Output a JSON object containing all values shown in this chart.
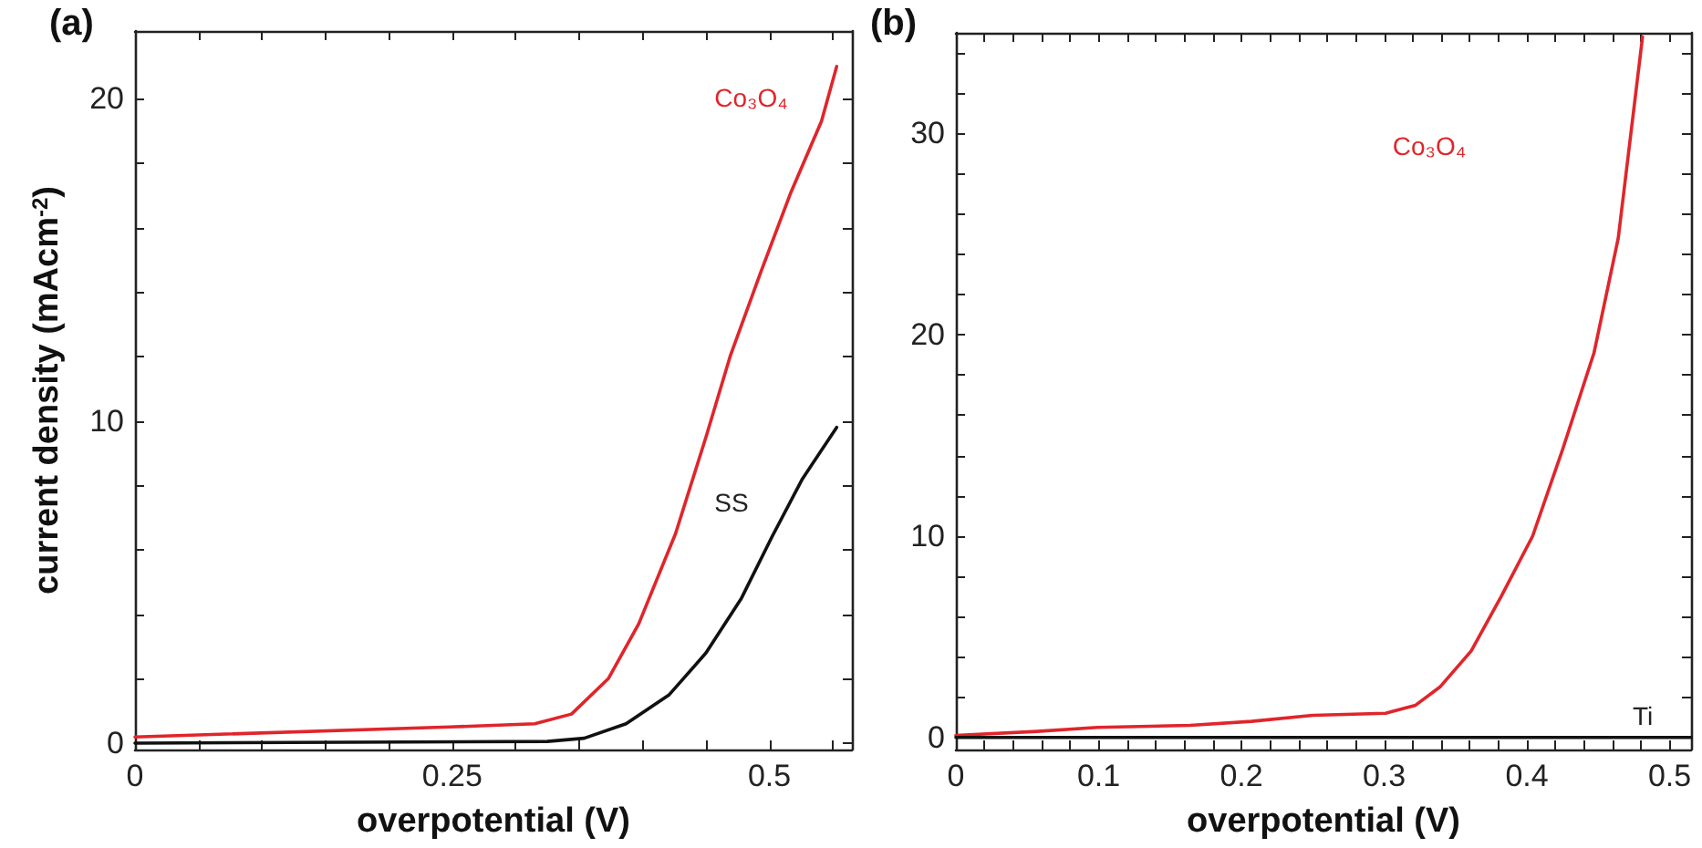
{
  "chart_data": [
    {
      "type": "line",
      "title": "(a)",
      "xlabel": "overpotential (V)",
      "ylabel": "current density (mAcm$^{-2}$)",
      "xlim": [
        0,
        0.565
      ],
      "ylim": [
        -0.2,
        22.1
      ],
      "xticks": [
        0,
        {
          "value": 0.05,
          "label": null
        },
        {
          "value": 0.1,
          "label": null
        },
        {
          "value": 0.15,
          "label": null
        },
        {
          "value": 0.2,
          "label": null
        },
        0.25,
        {
          "value": 0.3,
          "label": null
        },
        {
          "value": 0.35,
          "label": null
        },
        {
          "value": 0.4,
          "label": null
        },
        {
          "value": 0.45,
          "label": null
        },
        0.5,
        {
          "value": 0.55,
          "label": null
        }
      ],
      "yticks": [
        0,
        {
          "value": 2,
          "label": null
        },
        {
          "value": 4,
          "label": null
        },
        {
          "value": 6,
          "label": null
        },
        {
          "value": 8,
          "label": null
        },
        10,
        {
          "value": 12,
          "label": null
        },
        {
          "value": 14,
          "label": null
        },
        {
          "value": 16,
          "label": null
        },
        {
          "value": 18,
          "label": null
        },
        20
      ],
      "grid": false,
      "legend": false,
      "marker": "none",
      "line_style": "solid",
      "series": [
        {
          "name": "Co₃O₄",
          "color": "#e0252b",
          "x": [
            0,
            0.248,
            0.315,
            0.344,
            0.373,
            0.397,
            0.426,
            0.45,
            0.469,
            0.493,
            0.517,
            0.541,
            0.553
          ],
          "values": [
            0.19,
            0.5,
            0.6,
            0.9,
            2.0,
            3.7,
            6.5,
            9.5,
            12.0,
            14.6,
            17.1,
            19.3,
            21.0
          ]
        },
        {
          "name": "SS",
          "color": "#111111",
          "x": [
            0,
            0.325,
            0.354,
            0.387,
            0.421,
            0.45,
            0.478,
            0.502,
            0.526,
            0.553
          ],
          "values": [
            0,
            0.05,
            0.15,
            0.6,
            1.5,
            2.8,
            4.5,
            6.4,
            8.2,
            9.8
          ]
        }
      ]
    },
    {
      "type": "line",
      "title": "(b)",
      "xlabel": "overpotential (V)",
      "xlim": [
        0,
        0.515
      ],
      "ylim": [
        -0.6,
        35
      ],
      "xticks": [
        0,
        {
          "value": 0.02,
          "label": null
        },
        {
          "value": 0.04,
          "label": null
        },
        {
          "value": 0.06,
          "label": null
        },
        {
          "value": 0.08,
          "label": null
        },
        0.1,
        {
          "value": 0.12,
          "label": null
        },
        {
          "value": 0.14,
          "label": null
        },
        {
          "value": 0.16,
          "label": null
        },
        {
          "value": 0.18,
          "label": null
        },
        0.2,
        {
          "value": 0.22,
          "label": null
        },
        {
          "value": 0.24,
          "label": null
        },
        {
          "value": 0.26,
          "label": null
        },
        {
          "value": 0.28,
          "label": null
        },
        0.3,
        {
          "value": 0.32,
          "label": null
        },
        {
          "value": 0.34,
          "label": null
        },
        {
          "value": 0.36,
          "label": null
        },
        {
          "value": 0.38,
          "label": null
        },
        0.4,
        {
          "value": 0.42,
          "label": null
        },
        {
          "value": 0.44,
          "label": null
        },
        {
          "value": 0.46,
          "label": null
        },
        {
          "value": 0.48,
          "label": null
        },
        0.5
      ],
      "yticks": [
        0,
        {
          "value": 2,
          "label": null
        },
        {
          "value": 4,
          "label": null
        },
        {
          "value": 6,
          "label": null
        },
        {
          "value": 8,
          "label": null
        },
        10,
        {
          "value": 12,
          "label": null
        },
        {
          "value": 14,
          "label": null
        },
        {
          "value": 16,
          "label": null
        },
        {
          "value": 18,
          "label": null
        },
        20,
        {
          "value": 22,
          "label": null
        },
        {
          "value": 24,
          "label": null
        },
        {
          "value": 26,
          "label": null
        },
        {
          "value": 28,
          "label": null
        },
        30,
        {
          "value": 32,
          "label": null
        },
        {
          "value": 34,
          "label": null
        }
      ],
      "grid": false,
      "legend": false,
      "marker": "none",
      "line_style": "solid",
      "series": [
        {
          "name": "Co₃O₄",
          "color": "#e0252b",
          "x": [
            0,
            0.057,
            0.099,
            0.164,
            0.207,
            0.25,
            0.301,
            0.322,
            0.339,
            0.361,
            0.382,
            0.404,
            0.425,
            0.447,
            0.464,
            0.481
          ],
          "values": [
            0.1,
            0.3,
            0.5,
            0.6,
            0.8,
            1.1,
            1.2,
            1.6,
            2.5,
            4.3,
            7.0,
            10.0,
            14.3,
            19.1,
            24.8,
            34.8
          ]
        },
        {
          "name": "Ti",
          "color": "#111111",
          "x": [
            0,
            0.515
          ],
          "values": [
            0,
            0
          ]
        }
      ]
    }
  ]
}
